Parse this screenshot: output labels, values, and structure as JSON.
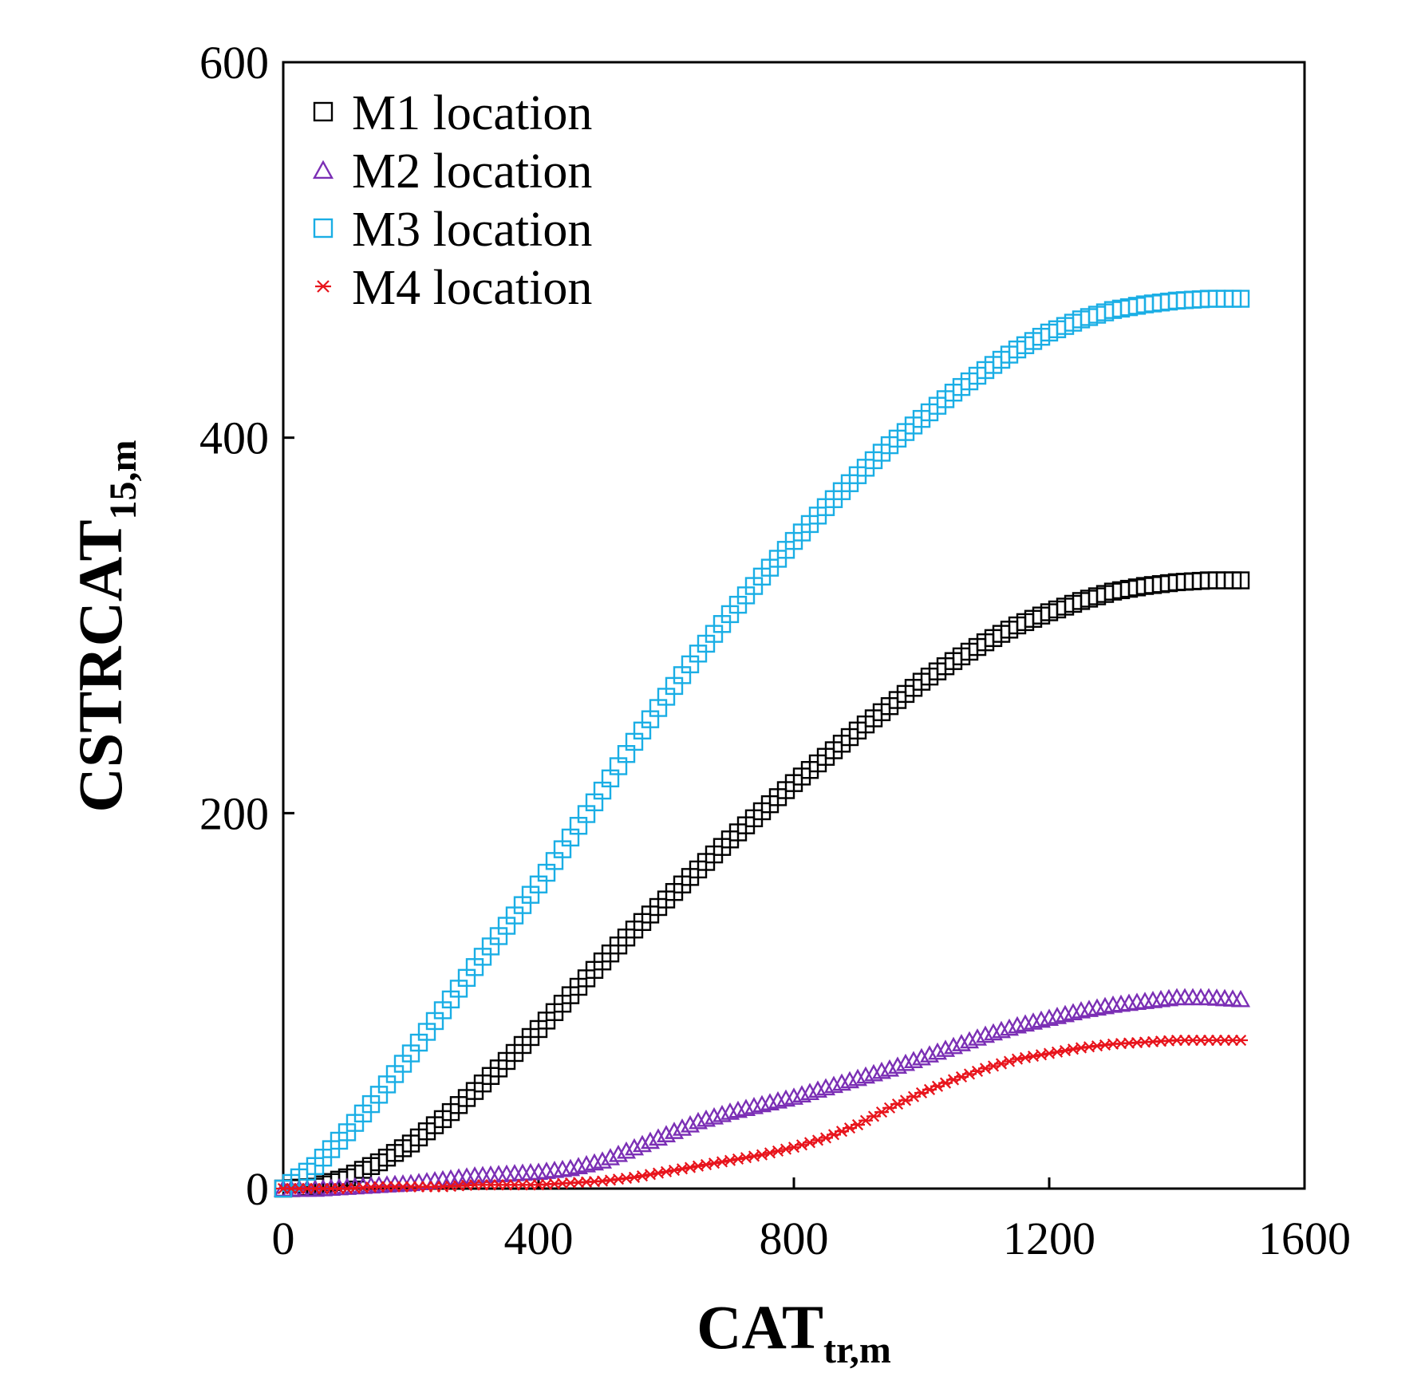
{
  "chart_data": {
    "type": "scatter",
    "title": "",
    "xlabel": "CAT",
    "xlabel_sub": "tr,m",
    "ylabel": "CSTRCAT",
    "ylabel_sub": "15,m",
    "xlim": [
      0,
      1600
    ],
    "ylim": [
      0,
      600
    ],
    "xticks": [
      0,
      400,
      800,
      1200,
      1600
    ],
    "yticks": [
      0,
      200,
      400,
      600
    ],
    "grid": false,
    "legend_position": "top-left",
    "series": [
      {
        "name": "M1 location",
        "marker": "square",
        "color": "#000000",
        "points": [
          [
            0,
            0
          ],
          [
            50,
            1
          ],
          [
            100,
            6
          ],
          [
            150,
            14
          ],
          [
            200,
            24
          ],
          [
            250,
            37
          ],
          [
            300,
            52
          ],
          [
            350,
            68
          ],
          [
            400,
            85
          ],
          [
            450,
            103
          ],
          [
            500,
            121
          ],
          [
            550,
            138
          ],
          [
            600,
            154
          ],
          [
            650,
            170
          ],
          [
            700,
            186
          ],
          [
            750,
            201
          ],
          [
            800,
            216
          ],
          [
            850,
            230
          ],
          [
            900,
            244
          ],
          [
            950,
            257
          ],
          [
            1000,
            270
          ],
          [
            1050,
            281
          ],
          [
            1100,
            291
          ],
          [
            1150,
            300
          ],
          [
            1200,
            307
          ],
          [
            1250,
            313
          ],
          [
            1300,
            318
          ],
          [
            1350,
            321
          ],
          [
            1400,
            323
          ],
          [
            1450,
            324
          ],
          [
            1500,
            324
          ]
        ]
      },
      {
        "name": "M2 location",
        "marker": "triangle",
        "color": "#7b2fb5",
        "points": [
          [
            0,
            0
          ],
          [
            50,
            0
          ],
          [
            100,
            1
          ],
          [
            150,
            2
          ],
          [
            200,
            3
          ],
          [
            250,
            5
          ],
          [
            300,
            7
          ],
          [
            350,
            8
          ],
          [
            400,
            9
          ],
          [
            450,
            11
          ],
          [
            500,
            15
          ],
          [
            550,
            22
          ],
          [
            600,
            29
          ],
          [
            650,
            36
          ],
          [
            700,
            41
          ],
          [
            750,
            45
          ],
          [
            800,
            49
          ],
          [
            850,
            54
          ],
          [
            900,
            59
          ],
          [
            950,
            64
          ],
          [
            1000,
            70
          ],
          [
            1050,
            76
          ],
          [
            1100,
            82
          ],
          [
            1150,
            87
          ],
          [
            1200,
            91
          ],
          [
            1250,
            95
          ],
          [
            1300,
            98
          ],
          [
            1350,
            100
          ],
          [
            1400,
            102
          ],
          [
            1450,
            102
          ],
          [
            1500,
            101
          ]
        ]
      },
      {
        "name": "M3 location",
        "marker": "square",
        "color": "#1aaee5",
        "points": [
          [
            0,
            0
          ],
          [
            50,
            12
          ],
          [
            100,
            30
          ],
          [
            150,
            50
          ],
          [
            200,
            72
          ],
          [
            250,
            95
          ],
          [
            300,
            118
          ],
          [
            350,
            140
          ],
          [
            400,
            162
          ],
          [
            450,
            187
          ],
          [
            500,
            212
          ],
          [
            550,
            238
          ],
          [
            600,
            262
          ],
          [
            650,
            285
          ],
          [
            700,
            306
          ],
          [
            750,
            326
          ],
          [
            800,
            345
          ],
          [
            850,
            363
          ],
          [
            900,
            380
          ],
          [
            950,
            396
          ],
          [
            1000,
            410
          ],
          [
            1050,
            424
          ],
          [
            1100,
            436
          ],
          [
            1150,
            447
          ],
          [
            1200,
            456
          ],
          [
            1250,
            463
          ],
          [
            1300,
            468
          ],
          [
            1350,
            471
          ],
          [
            1400,
            473
          ],
          [
            1450,
            474
          ],
          [
            1500,
            474
          ]
        ]
      },
      {
        "name": "M4 location",
        "marker": "asterisk",
        "color": "#e8141c",
        "points": [
          [
            0,
            0
          ],
          [
            50,
            0
          ],
          [
            100,
            0
          ],
          [
            150,
            1
          ],
          [
            200,
            1
          ],
          [
            250,
            1
          ],
          [
            300,
            2
          ],
          [
            350,
            2
          ],
          [
            400,
            2
          ],
          [
            450,
            3
          ],
          [
            500,
            4
          ],
          [
            550,
            6
          ],
          [
            600,
            9
          ],
          [
            650,
            12
          ],
          [
            700,
            15
          ],
          [
            750,
            18
          ],
          [
            800,
            22
          ],
          [
            850,
            27
          ],
          [
            900,
            34
          ],
          [
            950,
            43
          ],
          [
            1000,
            51
          ],
          [
            1050,
            58
          ],
          [
            1100,
            64
          ],
          [
            1150,
            69
          ],
          [
            1200,
            72
          ],
          [
            1250,
            75
          ],
          [
            1300,
            77
          ],
          [
            1350,
            78
          ],
          [
            1400,
            79
          ],
          [
            1450,
            79
          ],
          [
            1500,
            79
          ]
        ]
      }
    ]
  }
}
